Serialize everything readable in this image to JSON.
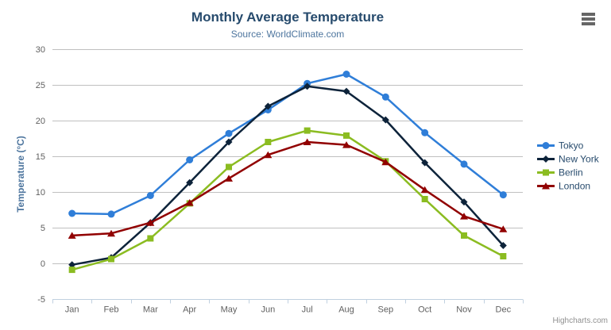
{
  "chart": {
    "title": "Monthly Average Temperature",
    "subtitle": "Source: WorldClimate.com",
    "credit": "Highcharts.com",
    "menu_icon": "hamburger-menu-icon"
  },
  "colors": {
    "title": "#274b6d",
    "subtitle": "#4d759e",
    "axis_label": "#606060",
    "y_axis_title": "#4d759e",
    "legend_text": "#274b6d",
    "gridline": "#c0c0c0",
    "axis_line": "#c0d0e0",
    "credit": "#909090",
    "menu_icon": "#666666"
  },
  "chart_data": {
    "type": "line",
    "title": "Monthly Average Temperature",
    "subtitle": "Source: WorldClimate.com",
    "xlabel": "",
    "ylabel": "Temperature (°C)",
    "categories": [
      "Jan",
      "Feb",
      "Mar",
      "Apr",
      "May",
      "Jun",
      "Jul",
      "Aug",
      "Sep",
      "Oct",
      "Nov",
      "Dec"
    ],
    "ylim": [
      -5,
      30
    ],
    "y_tick_interval": 5,
    "y_tick_labels": [
      "-5",
      "0",
      "5",
      "10",
      "15",
      "20",
      "25",
      "30"
    ],
    "grid": true,
    "legend_position": "right",
    "series": [
      {
        "name": "Tokyo",
        "color": "#2f7ed8",
        "marker": "circle",
        "values": [
          7.0,
          6.9,
          9.5,
          14.5,
          18.2,
          21.5,
          25.2,
          26.5,
          23.3,
          18.3,
          13.9,
          9.6
        ]
      },
      {
        "name": "New York",
        "color": "#0d233a",
        "marker": "diamond",
        "values": [
          -0.2,
          0.8,
          5.7,
          11.3,
          17.0,
          22.0,
          24.8,
          24.1,
          20.1,
          14.1,
          8.6,
          2.5
        ]
      },
      {
        "name": "Berlin",
        "color": "#8bbc21",
        "marker": "square",
        "values": [
          -0.9,
          0.6,
          3.5,
          8.4,
          13.5,
          17.0,
          18.6,
          17.9,
          14.3,
          9.0,
          3.9,
          1.0
        ]
      },
      {
        "name": "London",
        "color": "#910000",
        "marker": "triangle",
        "values": [
          3.9,
          4.2,
          5.7,
          8.5,
          11.9,
          15.2,
          17.0,
          16.6,
          14.2,
          10.3,
          6.6,
          4.8
        ]
      }
    ]
  }
}
